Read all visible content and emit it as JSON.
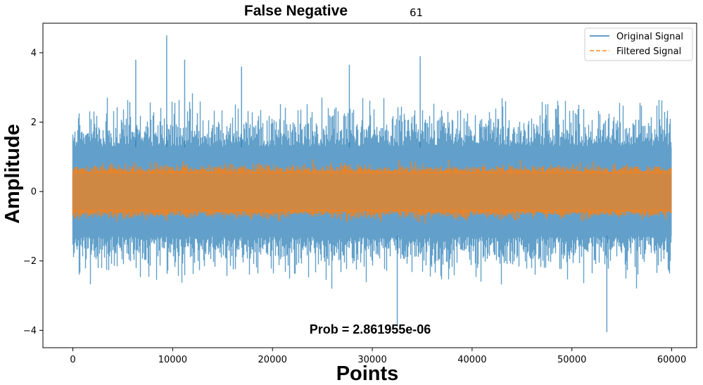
{
  "chart_data": {
    "type": "line",
    "title": "False Negative",
    "title_suffix": "61",
    "xlabel": "Points",
    "ylabel": "Amplitude",
    "annotation": "Prob = 2.861955e-06",
    "xlim": [
      -3000,
      62500
    ],
    "ylim": [
      -4.5,
      4.85
    ],
    "x_ticks": [
      0,
      10000,
      20000,
      30000,
      40000,
      50000,
      60000
    ],
    "x_tick_labels": [
      "0",
      "10000",
      "20000",
      "30000",
      "40000",
      "50000",
      "60000"
    ],
    "y_ticks": [
      -4,
      -2,
      0,
      2,
      4
    ],
    "y_tick_labels": [
      "−4",
      "−2",
      "0",
      "2",
      "4"
    ],
    "grid": false,
    "legend_position": "top-right",
    "series": [
      {
        "name": "Original Signal",
        "color": "#1f77b4",
        "opacity": 0.7,
        "style": "solid",
        "x_range": [
          0,
          59999
        ],
        "typical_band": [
          -1.3,
          1.3
        ],
        "envelope_upper_peak_max": 4.5,
        "envelope_lower_peak_min": -4.05
      },
      {
        "name": "Filtered Signal",
        "color": "#ff7f0e",
        "opacity": 0.7,
        "style": "dashed",
        "x_range": [
          0,
          59999
        ],
        "typical_band": [
          -0.55,
          0.55
        ],
        "envelope_upper_peak_max": 0.95,
        "envelope_lower_peak_min": -1.05
      }
    ]
  }
}
